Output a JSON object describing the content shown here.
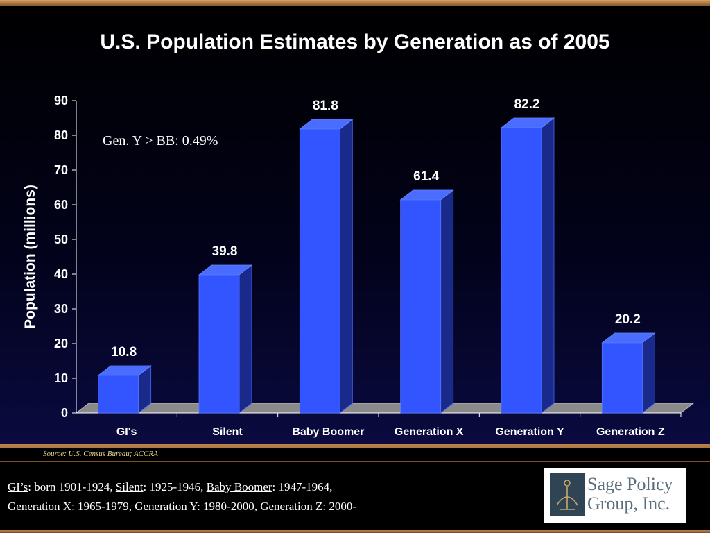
{
  "title": "U.S. Population Estimates by Generation as of 2005",
  "annotation": "Gen. Y > BB: 0.49%",
  "source": "Source: U.S. Census Bureau; ACCRA",
  "definitions": [
    {
      "term": "GI’s",
      "range": ": born 1901-1924, "
    },
    {
      "term": "Silent",
      "range": ": 1925-1946, "
    },
    {
      "term": "Baby Boomer",
      "range": ": 1947-1964,"
    },
    {
      "term": "Generation X",
      "range": ": 1965-1979, "
    },
    {
      "term": "Generation Y",
      "range": ": 1980-2000, "
    },
    {
      "term": "Generation Z",
      "range": ": 2000-"
    }
  ],
  "logo": {
    "line1": "Sage Policy",
    "line2": "Group, Inc."
  },
  "colors": {
    "bar_front": "#3355ff",
    "bar_side": "#1a2a8a",
    "bar_top": "#4a6cff",
    "floor": "#8a8a8a",
    "axis": "#ffffff",
    "text": "#ffffff",
    "accent_band": "#b8834c",
    "logo_text": "#5a6e7c"
  },
  "chart_data": {
    "type": "bar",
    "categories": [
      "GI's",
      "Silent",
      "Baby Boomer",
      "Generation X",
      "Generation Y",
      "Generation Z"
    ],
    "values": [
      10.8,
      39.8,
      81.8,
      61.4,
      82.2,
      20.2
    ],
    "data_labels": [
      "10.8",
      "39.8",
      "81.8",
      "61.4",
      "82.2",
      "20.2"
    ],
    "ylabel": "Population (millions)",
    "xlabel": "",
    "ylim": [
      0,
      90
    ],
    "yticks": [
      0,
      10,
      20,
      30,
      40,
      50,
      60,
      70,
      80,
      90
    ],
    "grid": false,
    "style": "3d"
  }
}
